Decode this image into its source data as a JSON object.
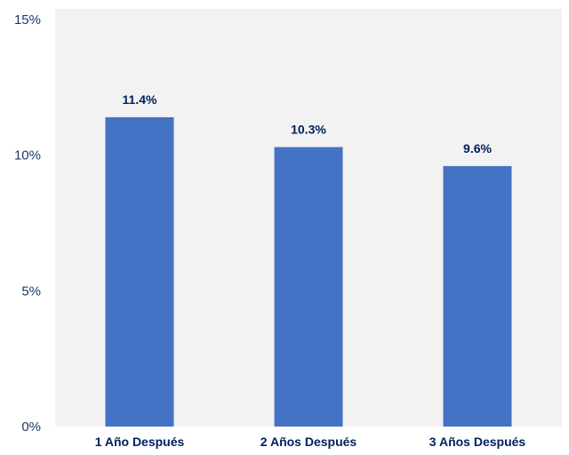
{
  "chart_data": {
    "type": "bar",
    "categories": [
      "1 Año Después",
      "2 Años Después",
      "3 Años Después"
    ],
    "values": [
      11.4,
      10.3,
      9.6
    ],
    "data_labels": [
      "11.4%",
      "10.3%",
      "9.6%"
    ],
    "title": "",
    "xlabel": "",
    "ylabel": "",
    "ylim": [
      0,
      15
    ],
    "yticks": [
      0,
      5,
      10,
      15
    ],
    "ytick_labels": [
      "0%",
      "5%",
      "10%",
      "15%"
    ],
    "grid": false,
    "legend": "none",
    "colors": {
      "bar": "#4472c4",
      "plot_background": "#f2f2f2",
      "label_text": "#002060",
      "axis_text": "#1f3864"
    }
  }
}
